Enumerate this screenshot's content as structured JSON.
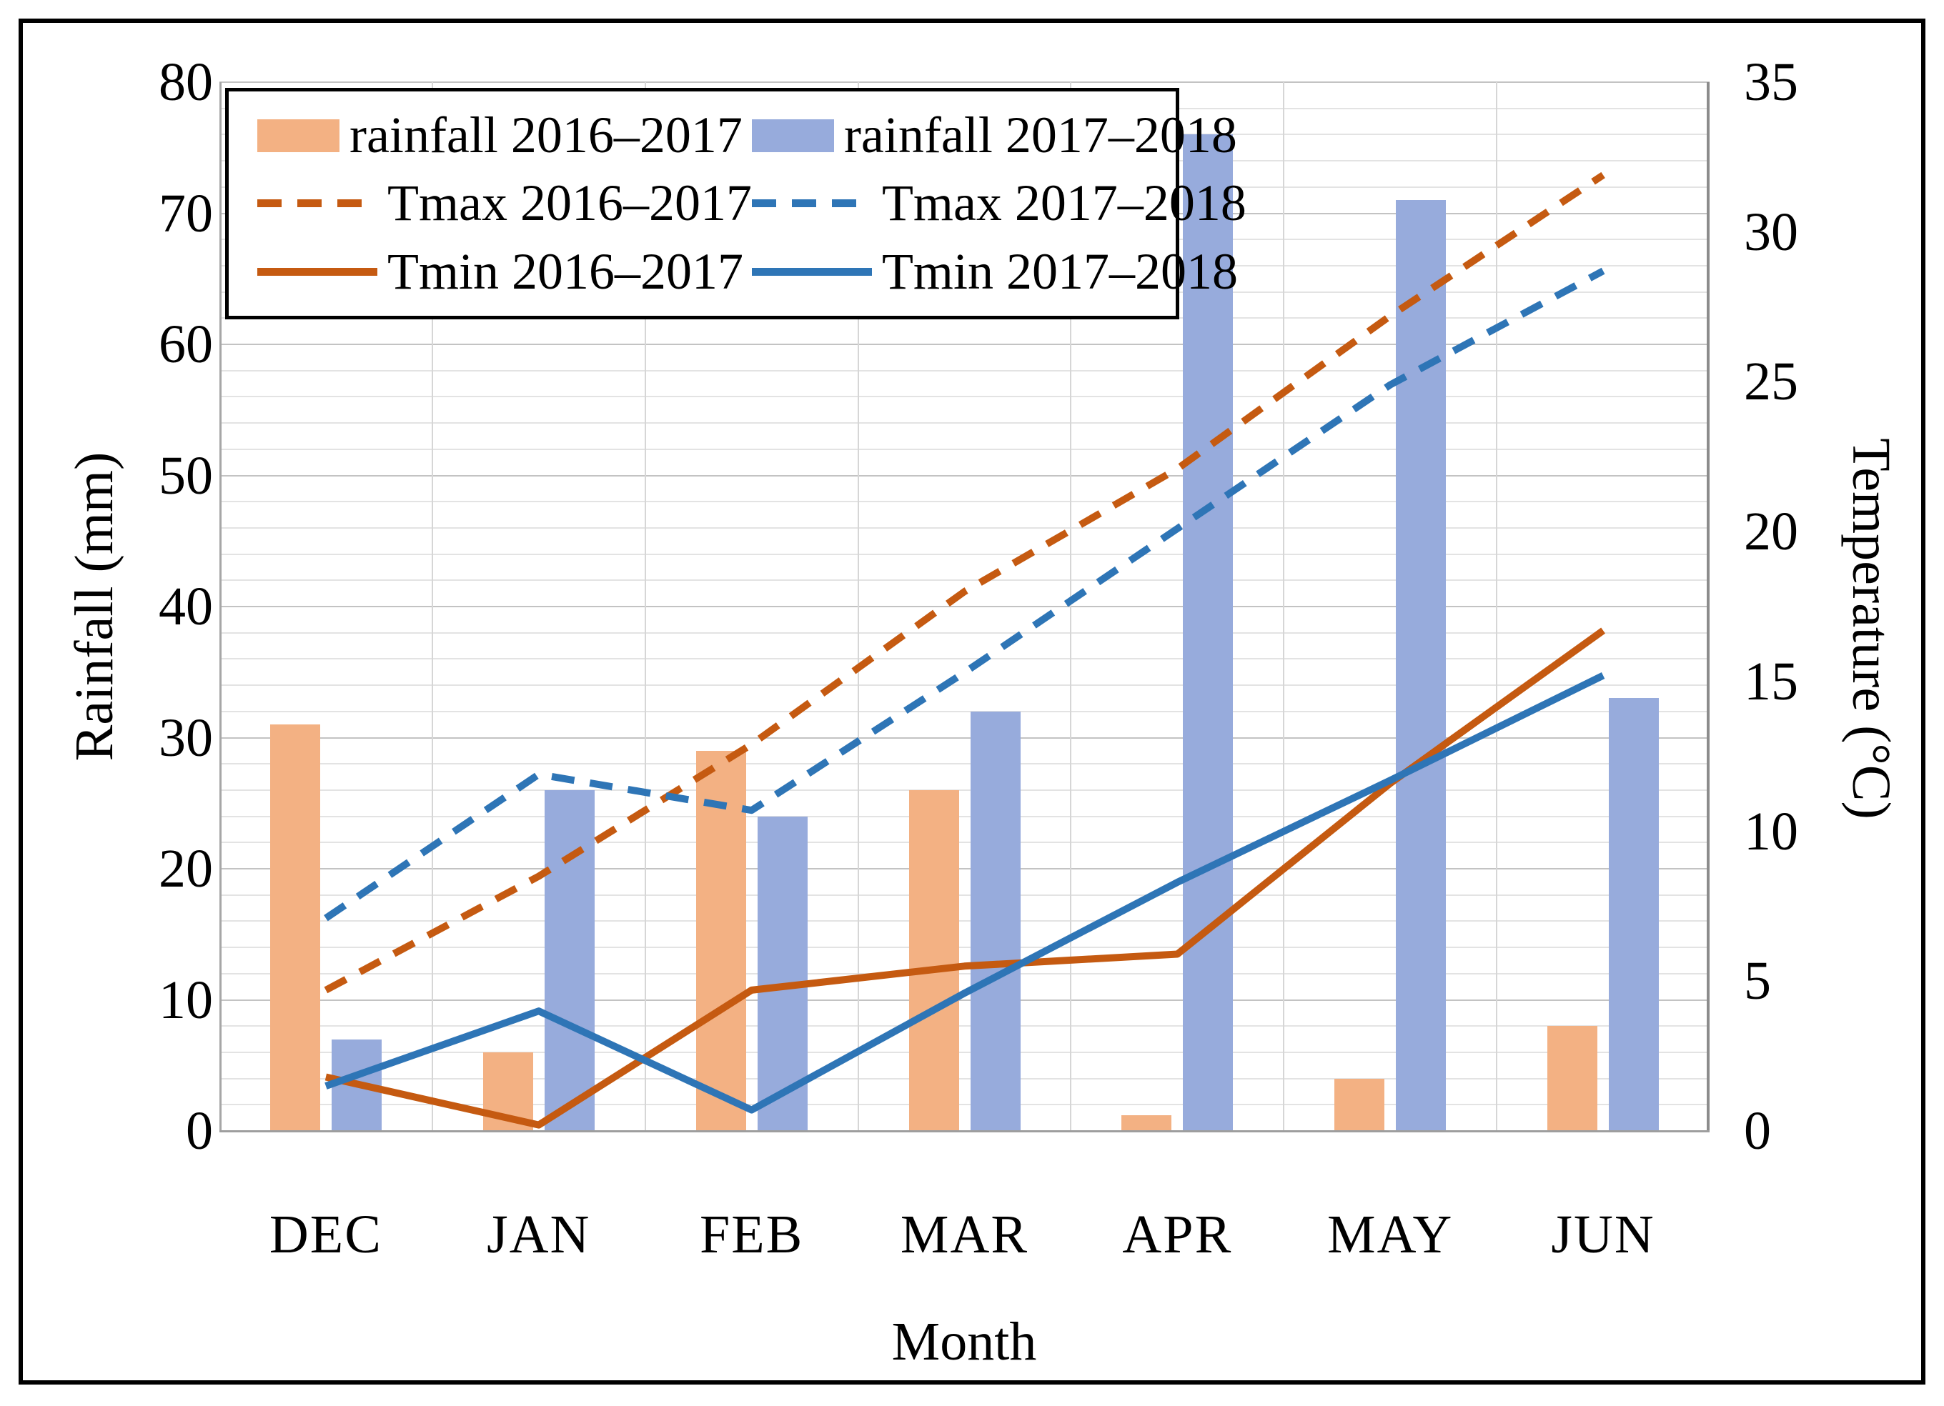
{
  "figure": {
    "xlabel": "Month",
    "ylabel_left": "Rainfall (mm)",
    "ylabel_right": "Temperature (°C)"
  },
  "chart_data": {
    "type": "bar",
    "subtype": "combo bar + line, dual y-axis",
    "categories": [
      "DEC",
      "JAN",
      "FEB",
      "MAR",
      "APR",
      "MAY",
      "JUN"
    ],
    "series": [
      {
        "name": "rainfall 2016–2017",
        "type": "bar",
        "style": "solid",
        "axis": "left",
        "color": "#F3B183",
        "values": [
          31,
          6,
          29,
          26,
          1.2,
          4,
          8
        ]
      },
      {
        "name": "rainfall 2017–2018",
        "type": "bar",
        "style": "solid",
        "axis": "left",
        "color": "#97ABDC",
        "values": [
          7,
          26,
          24,
          32,
          76,
          71,
          33
        ]
      },
      {
        "name": "Tmax 2016–2017",
        "type": "line",
        "style": "dashed",
        "axis": "right",
        "color": "#C55A11",
        "values": [
          4.7,
          8.5,
          12.9,
          18.0,
          22.1,
          27.2,
          31.9
        ]
      },
      {
        "name": "Tmax 2017–2018",
        "type": "line",
        "style": "dashed",
        "axis": "right",
        "color": "#2E75B6",
        "values": [
          7.1,
          11.9,
          10.7,
          15.3,
          20.1,
          24.9,
          28.7
        ]
      },
      {
        "name": "Tmin 2016–2017",
        "type": "line",
        "style": "solid",
        "axis": "right",
        "color": "#C55A11",
        "values": [
          1.8,
          0.2,
          4.7,
          5.5,
          5.9,
          11.6,
          16.7
        ]
      },
      {
        "name": "Tmin 2017–2018",
        "type": "line",
        "style": "solid",
        "axis": "right",
        "color": "#2E75B6",
        "values": [
          1.5,
          4.0,
          0.7,
          4.6,
          8.3,
          11.7,
          15.2
        ]
      }
    ],
    "title": "",
    "xlabel": "Month",
    "ylabel_left": "Rainfall (mm)",
    "ylabel_right": "Temperature (°C)",
    "ylim_left": [
      0,
      80
    ],
    "ylim_right": [
      0,
      35
    ],
    "yticks_left": [
      0,
      10,
      20,
      30,
      40,
      50,
      60,
      70,
      80
    ],
    "yticks_right": [
      0,
      5,
      10,
      15,
      20,
      25,
      30,
      35
    ],
    "grid": {
      "horizontal_minor_step_mm": 2,
      "horizontal_major_step_mm": 10,
      "vertical": "category boundaries"
    },
    "legend_position": "top-left",
    "colors": {
      "bar_2016_2017": "#F3B183",
      "bar_2017_2018": "#97ABDC",
      "line_2016_2017": "#C55A11",
      "line_2017_2018": "#2E75B6",
      "grid_major": "#c3c3c3",
      "grid_minor": "#e3e3e3",
      "frame_border": "#000000"
    }
  }
}
